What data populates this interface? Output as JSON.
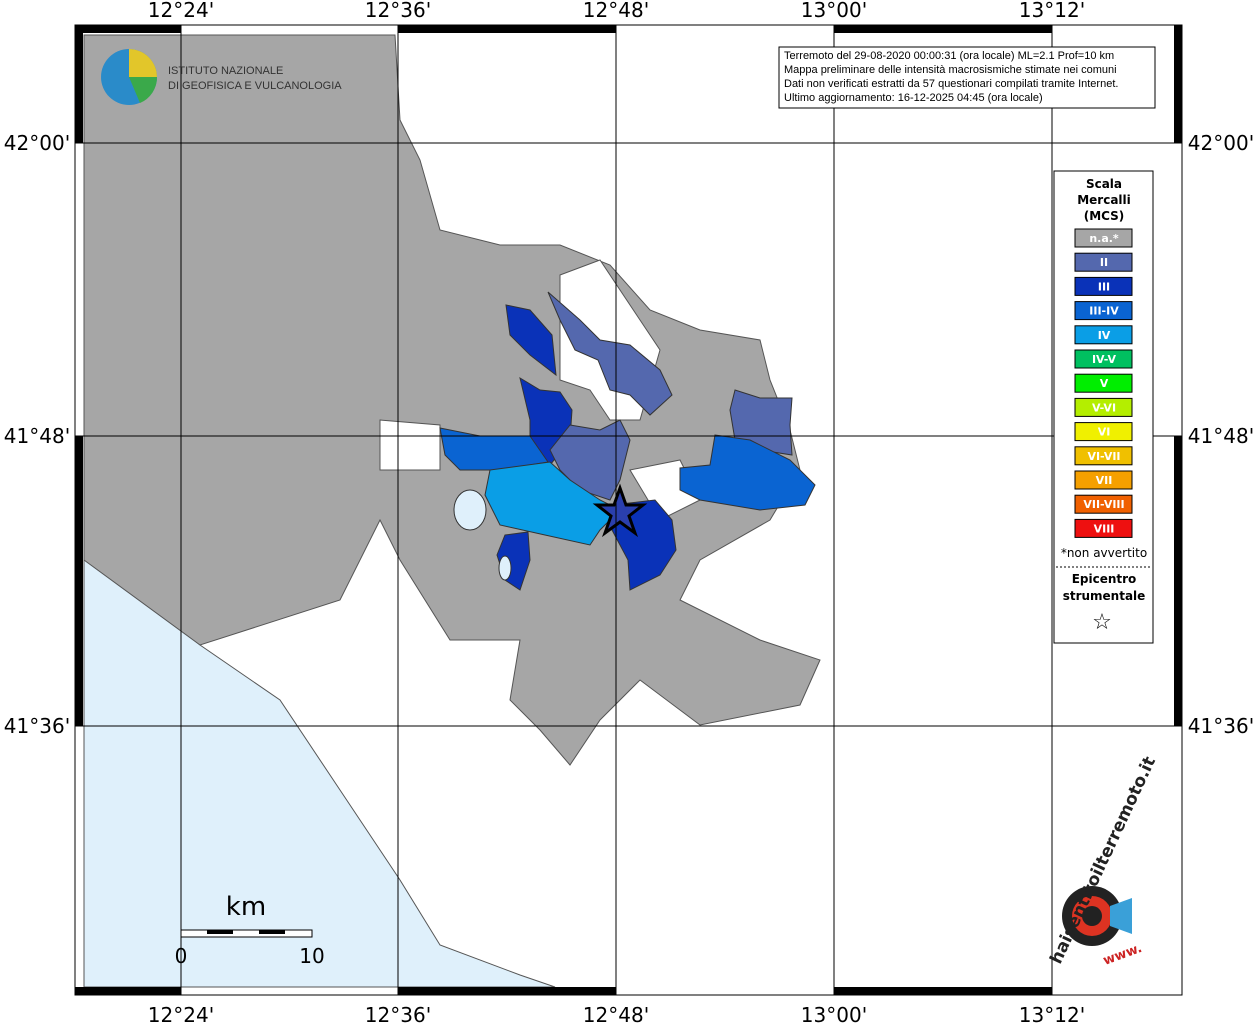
{
  "header": {
    "institute_line_1": "ISTITUTO NAZIONALE",
    "institute_line_2": "DI GEOFISICA E VULCANOLOGIA"
  },
  "info_box": [
    "Terremoto del 29-08-2020 00:00:31 (ora locale) ML=2.1 Prof=10 km",
    "Mappa preliminare delle intensità macrosismiche stimate nei comuni",
    "Dati non verificati estratti da 57 questionari compilati tramite Internet.",
    "Ultimo aggiornamento: 16-12-2025 04:45 (ora locale)"
  ],
  "longitude_labels": [
    "12°24'",
    "12°36'",
    "12°48'",
    "13°00'",
    "13°12'"
  ],
  "latitude_labels": [
    "42°00'",
    "41°48'",
    "41°36'"
  ],
  "legend": {
    "title_lines": [
      "Scala",
      "Mercalli",
      "(MCS)"
    ],
    "items": [
      {
        "label": "n.a.*",
        "color": "#a6a6a6"
      },
      {
        "label": "II",
        "color": "#5468ae"
      },
      {
        "label": "III",
        "color": "#0a32b8"
      },
      {
        "label": "III-IV",
        "color": "#0a64d2"
      },
      {
        "label": "IV",
        "color": "#0a9ee6"
      },
      {
        "label": "IV-V",
        "color": "#00c060"
      },
      {
        "label": "V",
        "color": "#00ee00"
      },
      {
        "label": "V-VI",
        "color": "#b4ee00"
      },
      {
        "label": "VI",
        "color": "#f0f000"
      },
      {
        "label": "VI-VII",
        "color": "#f0c000"
      },
      {
        "label": "VII",
        "color": "#f5a000"
      },
      {
        "label": "VII-VIII",
        "color": "#f06000"
      },
      {
        "label": "VIII",
        "color": "#ee1010"
      }
    ],
    "note": "*non avvertito",
    "epicenter_lines": [
      "Epicentro",
      "strumentale"
    ],
    "epicenter_symbol": "☆"
  },
  "scale_bar": {
    "unit": "km",
    "start": "0",
    "end": "10"
  },
  "site_logo": {
    "name": "haisentitoilterremoto.it",
    "prefix": "www."
  }
}
